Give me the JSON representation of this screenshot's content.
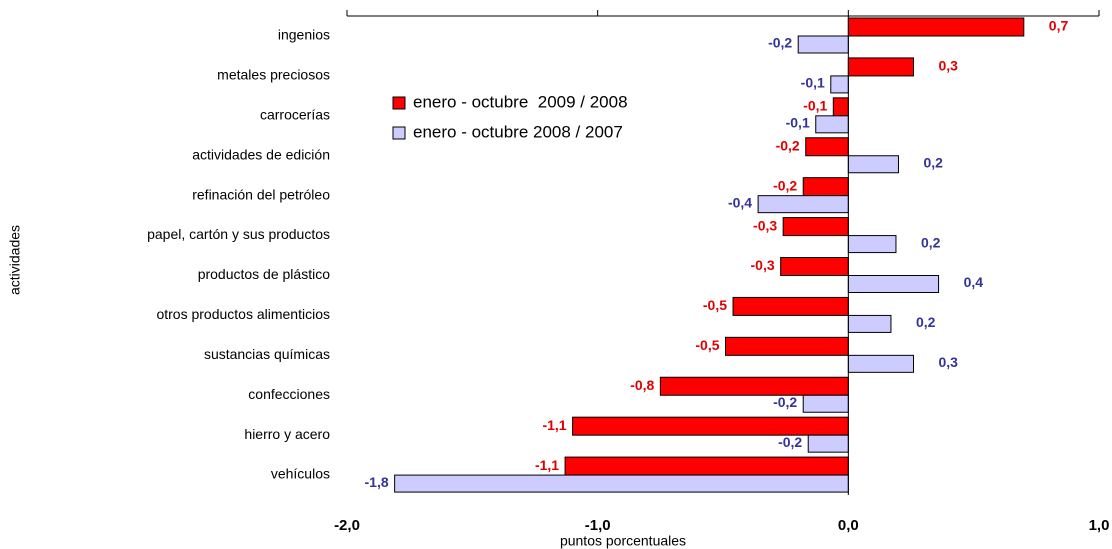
{
  "chart_data": {
    "type": "barh",
    "xlabel": "puntos porcentuales",
    "ylabel": "actividades",
    "categories": [
      "ingenios",
      "metales preciosos",
      "carrocerías",
      "actividades de edición",
      "refinación del petróleo",
      "papel, cartón y sus productos",
      "productos de plástico",
      "otros productos alimenticios",
      "sustancias químicas",
      "confecciones",
      "hierro y acero",
      "vehículos"
    ],
    "series": [
      {
        "name": "enero - octubre  2009 / 2008",
        "color": "#ff0000",
        "label_color": "#e00000",
        "values": [
          0.7,
          0.26,
          -0.06,
          -0.17,
          -0.18,
          -0.26,
          -0.27,
          -0.46,
          -0.49,
          -0.75,
          -1.1,
          -1.13
        ],
        "value_labels": [
          "0,7",
          "0,3",
          "-0,1",
          "-0,2",
          "-0,2",
          "-0,3",
          "-0,3",
          "-0,5",
          "-0,5",
          "-0,8",
          "-1,1",
          "-1,1"
        ]
      },
      {
        "name": "enero - octubre 2008 / 2007",
        "color": "#ccccff",
        "label_color": "#333399",
        "values": [
          -0.2,
          -0.07,
          -0.13,
          0.2,
          -0.36,
          0.19,
          0.36,
          0.17,
          0.26,
          -0.18,
          -0.16,
          -1.81
        ],
        "value_labels": [
          "-0,2",
          "-0,1",
          "-0,1",
          "0,2",
          "-0,4",
          "0,2",
          "0,4",
          "0,2",
          "0,3",
          "-0,2",
          "-0,2",
          "-1,8"
        ]
      }
    ],
    "xlim": [
      -2.0,
      1.0
    ],
    "xticks": [
      {
        "value": -2.0,
        "label": "-2,0"
      },
      {
        "value": -1.0,
        "label": "-1,0"
      },
      {
        "value": 0.0,
        "label": "0,0"
      },
      {
        "value": 1.0,
        "label": "1,0"
      }
    ],
    "legend": "upper left",
    "grid": false
  }
}
